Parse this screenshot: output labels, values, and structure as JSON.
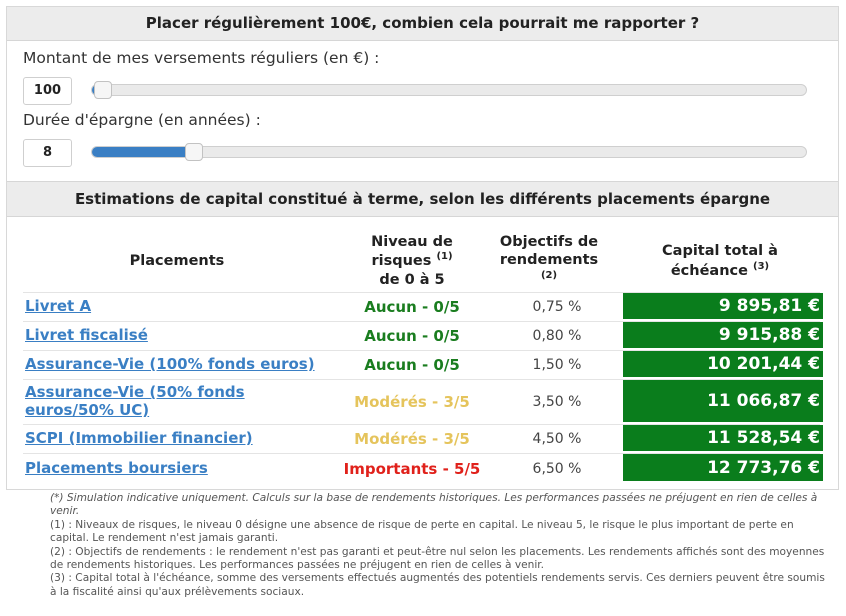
{
  "header": {
    "title": "Placer régulièrement 100€, combien cela pourrait me rapporter ?"
  },
  "inputs": {
    "amount": {
      "label": "Montant de mes versements réguliers (en €) :",
      "value": "100",
      "slider_fraction": 0.015
    },
    "duration": {
      "label": "Durée d'épargne (en années) :",
      "value": "8",
      "slider_fraction": 0.143
    }
  },
  "estimates": {
    "title": "Estimations de capital constitué à terme, selon les différents placements épargne",
    "columns": {
      "placements": "Placements",
      "risk": {
        "text": "Niveau de risques",
        "sup": "(1)",
        "text2": "de 0 à 5"
      },
      "objectives": {
        "text": "Objectifs de rendements",
        "sup": "(2)"
      },
      "capital": {
        "text": "Capital total à échéance",
        "sup": "(3)"
      }
    },
    "rows": [
      {
        "name": "Livret A",
        "risk": "Aucun - 0/5",
        "risk_color": "#1a7d1f",
        "objective": "0,75 %",
        "capital": "9 895,81 €"
      },
      {
        "name": "Livret fiscalisé",
        "risk": "Aucun - 0/5",
        "risk_color": "#1a7d1f",
        "objective": "0,80 %",
        "capital": "9 915,88 €"
      },
      {
        "name": "Assurance-Vie (100% fonds euros)",
        "risk": "Aucun - 0/5",
        "risk_color": "#1a7d1f",
        "objective": "1,50 %",
        "capital": "10 201,44 €"
      },
      {
        "name": "Assurance-Vie (50% fonds euros/50% UC)",
        "risk": "Modérés - 3/5",
        "risk_color": "#e5c45c",
        "objective": "3,50 %",
        "capital": "11 066,87 €"
      },
      {
        "name": "SCPI (Immobilier financier)",
        "risk": "Modérés - 3/5",
        "risk_color": "#e5c45c",
        "objective": "4,50 %",
        "capital": "11 528,54 €"
      },
      {
        "name": "Placements boursiers",
        "risk": "Importants - 5/5",
        "risk_color": "#e0211b",
        "objective": "6,50 %",
        "capital": "12 773,76 €"
      }
    ]
  },
  "notes": [
    "(*) Simulation indicative uniquement. Calculs sur la base de rendements historiques. Les performances passées ne préjugent en rien de celles à venir.",
    "(1) : Niveaux de risques, le niveau 0 désigne une absence de risque de perte en capital. Le niveau 5, le risque le plus important de perte en capital. Le rendement n'est jamais garanti.",
    "(2) : Objectifs de rendements : le rendement n'est pas garanti et peut-être nul selon les placements. Les rendements affichés sont des moyennes de rendements historiques. Les performances passées ne préjugent en rien de celles à venir.",
    "(3) : Capital total à l'échéance, somme des versements effectués augmentés des potentiels rendements servis. Ces derniers peuvent être soumis à la fiscalité ainsi qu'aux prélèvements sociaux."
  ],
  "colors": {
    "accent_blue": "#3a7fc4",
    "capital_green": "#0a7d1c"
  }
}
